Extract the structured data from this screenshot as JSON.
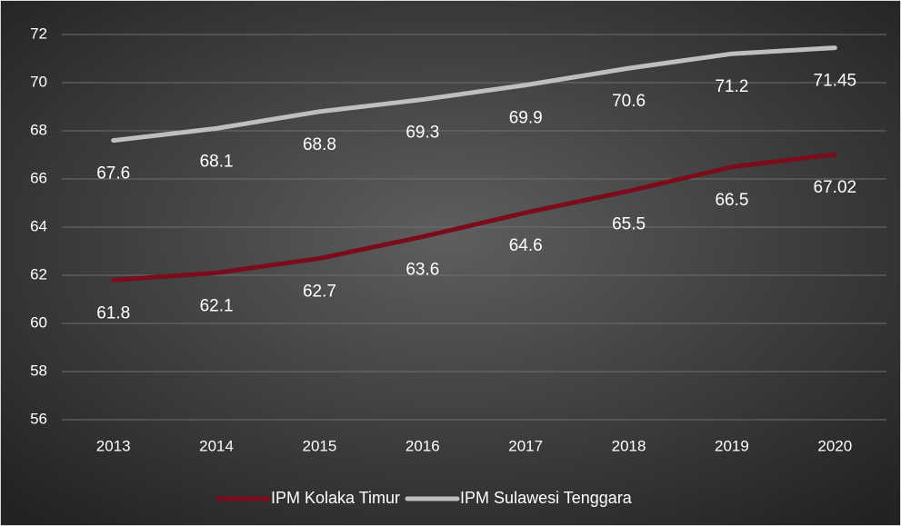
{
  "chart_data": {
    "type": "line",
    "categories": [
      "2013",
      "2014",
      "2015",
      "2016",
      "2017",
      "2018",
      "2019",
      "2020"
    ],
    "series": [
      {
        "name": "IPM Kolaka Timur",
        "color": "#7b0c1c",
        "values": [
          61.8,
          62.1,
          62.7,
          63.6,
          64.6,
          65.5,
          66.5,
          67.02
        ]
      },
      {
        "name": "IPM Sulawesi Tenggara",
        "color": "#bfbfbf",
        "values": [
          67.6,
          68.1,
          68.8,
          69.3,
          69.9,
          70.6,
          71.2,
          71.45
        ]
      }
    ],
    "ylim": [
      56,
      72
    ],
    "yticks": [
      56,
      58,
      60,
      62,
      64,
      66,
      68,
      70,
      72
    ],
    "grid": true,
    "legend": "bottom"
  }
}
